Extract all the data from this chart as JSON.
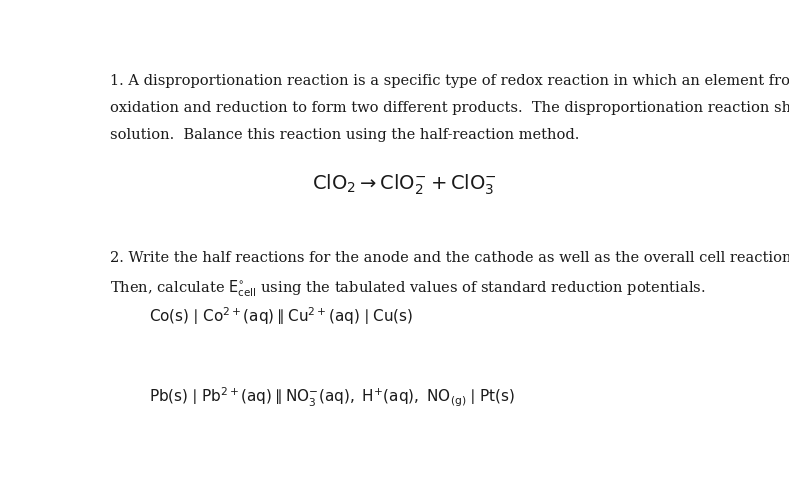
{
  "background_color": "#ffffff",
  "text_color": "#1a1a1a",
  "para1_line1": "1. A disproportionation reaction is a specific type of redox reaction in which an element from a reaction undergoes both",
  "para1_line2": "oxidation and reduction to form two different products.  The disproportionation reaction shown below occurs in basic",
  "para1_line3": "solution.  Balance this reaction using the half-reaction method.",
  "para2_line1": "2. Write the half reactions for the anode and the cathode as well as the overall cell reaction in the following galvanic cells.",
  "para2_line2": "Then, calculate E°cell using the tabulated values of standard reduction potentials.",
  "font_size_body": 10.5,
  "font_size_equation": 14,
  "font_family": "serif"
}
